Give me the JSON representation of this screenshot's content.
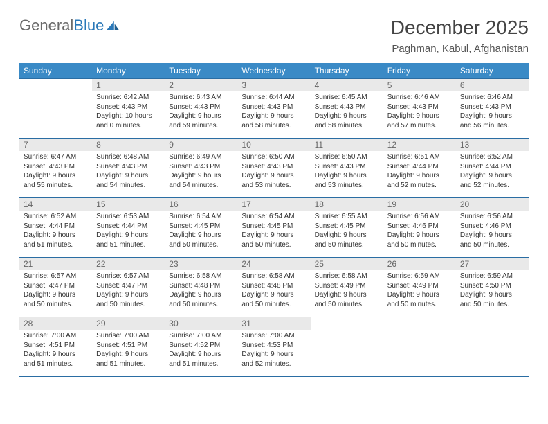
{
  "brand": {
    "part1": "General",
    "part2": "Blue"
  },
  "title": "December 2025",
  "location": "Paghman, Kabul, Afghanistan",
  "colors": {
    "header_bg": "#3a8ac6",
    "header_text": "#ffffff",
    "daynum_bg": "#e9e9e9",
    "border": "#2a6da3",
    "brand_gray": "#6a6a6a",
    "brand_blue": "#2a78b8"
  },
  "day_labels": [
    "Sunday",
    "Monday",
    "Tuesday",
    "Wednesday",
    "Thursday",
    "Friday",
    "Saturday"
  ],
  "weeks": [
    [
      null,
      {
        "n": "1",
        "sr": "Sunrise: 6:42 AM",
        "ss": "Sunset: 4:43 PM",
        "dl": "Daylight: 10 hours and 0 minutes."
      },
      {
        "n": "2",
        "sr": "Sunrise: 6:43 AM",
        "ss": "Sunset: 4:43 PM",
        "dl": "Daylight: 9 hours and 59 minutes."
      },
      {
        "n": "3",
        "sr": "Sunrise: 6:44 AM",
        "ss": "Sunset: 4:43 PM",
        "dl": "Daylight: 9 hours and 58 minutes."
      },
      {
        "n": "4",
        "sr": "Sunrise: 6:45 AM",
        "ss": "Sunset: 4:43 PM",
        "dl": "Daylight: 9 hours and 58 minutes."
      },
      {
        "n": "5",
        "sr": "Sunrise: 6:46 AM",
        "ss": "Sunset: 4:43 PM",
        "dl": "Daylight: 9 hours and 57 minutes."
      },
      {
        "n": "6",
        "sr": "Sunrise: 6:46 AM",
        "ss": "Sunset: 4:43 PM",
        "dl": "Daylight: 9 hours and 56 minutes."
      }
    ],
    [
      {
        "n": "7",
        "sr": "Sunrise: 6:47 AM",
        "ss": "Sunset: 4:43 PM",
        "dl": "Daylight: 9 hours and 55 minutes."
      },
      {
        "n": "8",
        "sr": "Sunrise: 6:48 AM",
        "ss": "Sunset: 4:43 PM",
        "dl": "Daylight: 9 hours and 54 minutes."
      },
      {
        "n": "9",
        "sr": "Sunrise: 6:49 AM",
        "ss": "Sunset: 4:43 PM",
        "dl": "Daylight: 9 hours and 54 minutes."
      },
      {
        "n": "10",
        "sr": "Sunrise: 6:50 AM",
        "ss": "Sunset: 4:43 PM",
        "dl": "Daylight: 9 hours and 53 minutes."
      },
      {
        "n": "11",
        "sr": "Sunrise: 6:50 AM",
        "ss": "Sunset: 4:43 PM",
        "dl": "Daylight: 9 hours and 53 minutes."
      },
      {
        "n": "12",
        "sr": "Sunrise: 6:51 AM",
        "ss": "Sunset: 4:44 PM",
        "dl": "Daylight: 9 hours and 52 minutes."
      },
      {
        "n": "13",
        "sr": "Sunrise: 6:52 AM",
        "ss": "Sunset: 4:44 PM",
        "dl": "Daylight: 9 hours and 52 minutes."
      }
    ],
    [
      {
        "n": "14",
        "sr": "Sunrise: 6:52 AM",
        "ss": "Sunset: 4:44 PM",
        "dl": "Daylight: 9 hours and 51 minutes."
      },
      {
        "n": "15",
        "sr": "Sunrise: 6:53 AM",
        "ss": "Sunset: 4:44 PM",
        "dl": "Daylight: 9 hours and 51 minutes."
      },
      {
        "n": "16",
        "sr": "Sunrise: 6:54 AM",
        "ss": "Sunset: 4:45 PM",
        "dl": "Daylight: 9 hours and 50 minutes."
      },
      {
        "n": "17",
        "sr": "Sunrise: 6:54 AM",
        "ss": "Sunset: 4:45 PM",
        "dl": "Daylight: 9 hours and 50 minutes."
      },
      {
        "n": "18",
        "sr": "Sunrise: 6:55 AM",
        "ss": "Sunset: 4:45 PM",
        "dl": "Daylight: 9 hours and 50 minutes."
      },
      {
        "n": "19",
        "sr": "Sunrise: 6:56 AM",
        "ss": "Sunset: 4:46 PM",
        "dl": "Daylight: 9 hours and 50 minutes."
      },
      {
        "n": "20",
        "sr": "Sunrise: 6:56 AM",
        "ss": "Sunset: 4:46 PM",
        "dl": "Daylight: 9 hours and 50 minutes."
      }
    ],
    [
      {
        "n": "21",
        "sr": "Sunrise: 6:57 AM",
        "ss": "Sunset: 4:47 PM",
        "dl": "Daylight: 9 hours and 50 minutes."
      },
      {
        "n": "22",
        "sr": "Sunrise: 6:57 AM",
        "ss": "Sunset: 4:47 PM",
        "dl": "Daylight: 9 hours and 50 minutes."
      },
      {
        "n": "23",
        "sr": "Sunrise: 6:58 AM",
        "ss": "Sunset: 4:48 PM",
        "dl": "Daylight: 9 hours and 50 minutes."
      },
      {
        "n": "24",
        "sr": "Sunrise: 6:58 AM",
        "ss": "Sunset: 4:48 PM",
        "dl": "Daylight: 9 hours and 50 minutes."
      },
      {
        "n": "25",
        "sr": "Sunrise: 6:58 AM",
        "ss": "Sunset: 4:49 PM",
        "dl": "Daylight: 9 hours and 50 minutes."
      },
      {
        "n": "26",
        "sr": "Sunrise: 6:59 AM",
        "ss": "Sunset: 4:49 PM",
        "dl": "Daylight: 9 hours and 50 minutes."
      },
      {
        "n": "27",
        "sr": "Sunrise: 6:59 AM",
        "ss": "Sunset: 4:50 PM",
        "dl": "Daylight: 9 hours and 50 minutes."
      }
    ],
    [
      {
        "n": "28",
        "sr": "Sunrise: 7:00 AM",
        "ss": "Sunset: 4:51 PM",
        "dl": "Daylight: 9 hours and 51 minutes."
      },
      {
        "n": "29",
        "sr": "Sunrise: 7:00 AM",
        "ss": "Sunset: 4:51 PM",
        "dl": "Daylight: 9 hours and 51 minutes."
      },
      {
        "n": "30",
        "sr": "Sunrise: 7:00 AM",
        "ss": "Sunset: 4:52 PM",
        "dl": "Daylight: 9 hours and 51 minutes."
      },
      {
        "n": "31",
        "sr": "Sunrise: 7:00 AM",
        "ss": "Sunset: 4:53 PM",
        "dl": "Daylight: 9 hours and 52 minutes."
      },
      null,
      null,
      null
    ]
  ]
}
